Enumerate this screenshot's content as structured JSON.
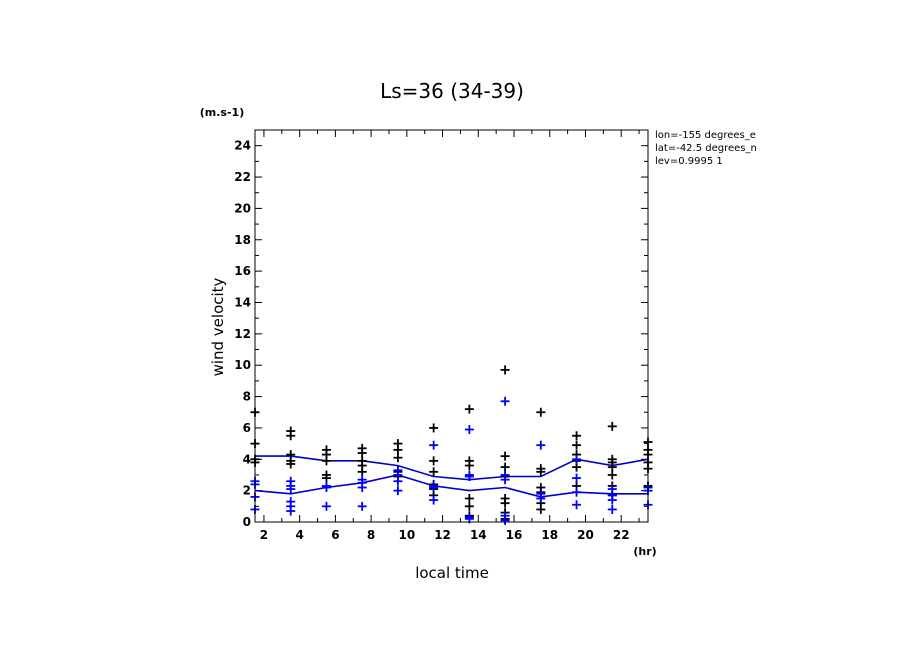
{
  "chart_data": {
    "type": "scatter",
    "title": "Ls=36 (34-39)",
    "xlabel": "local time",
    "ylabel": "wind velocity",
    "x_unit": "(hr)",
    "y_unit": "(m.s-1)",
    "xlim": [
      1.5,
      23.5
    ],
    "ylim": [
      0,
      25
    ],
    "xticks": [
      2,
      4,
      6,
      8,
      10,
      12,
      14,
      16,
      18,
      20,
      22
    ],
    "yticks": [
      0,
      2,
      4,
      6,
      8,
      10,
      12,
      14,
      16,
      18,
      20,
      22,
      24
    ],
    "grid": false,
    "annotations": [
      "lon=-155 degrees_e",
      "lat=-42.5 degrees_n",
      "lev=0.9995 1"
    ],
    "colors": {
      "series_a": "#000000",
      "series_b": "#0000ff",
      "lines": "#0000cc"
    },
    "series": [
      {
        "points": [
          [
            1.5,
            3.8
          ],
          [
            1.5,
            4.0
          ],
          [
            1.5,
            7.0
          ],
          [
            1.5,
            5.0
          ],
          [
            3.5,
            5.8
          ],
          [
            3.5,
            5.5
          ],
          [
            3.5,
            4.3
          ],
          [
            3.5,
            3.7
          ],
          [
            3.5,
            3.9
          ],
          [
            5.5,
            4.6
          ],
          [
            5.5,
            4.3
          ],
          [
            5.5,
            3.9
          ],
          [
            5.5,
            3.0
          ],
          [
            5.5,
            2.8
          ],
          [
            7.5,
            4.7
          ],
          [
            7.5,
            4.4
          ],
          [
            7.5,
            3.9
          ],
          [
            7.5,
            3.6
          ],
          [
            7.5,
            3.2
          ],
          [
            9.5,
            5.0
          ],
          [
            9.5,
            4.6
          ],
          [
            9.5,
            4.1
          ],
          [
            9.5,
            3.2
          ],
          [
            9.5,
            2.9
          ],
          [
            11.5,
            6.0
          ],
          [
            11.5,
            3.9
          ],
          [
            11.5,
            3.2
          ],
          [
            11.5,
            2.4
          ],
          [
            11.5,
            2.1
          ],
          [
            11.5,
            1.7
          ],
          [
            13.5,
            7.2
          ],
          [
            13.5,
            3.9
          ],
          [
            13.5,
            3.6
          ],
          [
            13.5,
            1.5
          ],
          [
            13.5,
            1.0
          ],
          [
            13.5,
            0.4
          ],
          [
            15.5,
            9.7
          ],
          [
            15.5,
            4.2
          ],
          [
            15.5,
            3.5
          ],
          [
            15.5,
            2.9
          ],
          [
            15.5,
            1.5
          ],
          [
            15.5,
            1.2
          ],
          [
            15.5,
            0.6
          ],
          [
            15.5,
            0.2
          ],
          [
            17.5,
            7.0
          ],
          [
            17.5,
            3.4
          ],
          [
            17.5,
            3.2
          ],
          [
            17.5,
            2.2
          ],
          [
            17.5,
            1.9
          ],
          [
            17.5,
            1.2
          ],
          [
            17.5,
            0.8
          ],
          [
            19.5,
            5.5
          ],
          [
            19.5,
            4.9
          ],
          [
            19.5,
            4.3
          ],
          [
            19.5,
            3.9
          ],
          [
            19.5,
            3.5
          ],
          [
            19.5,
            2.3
          ],
          [
            21.5,
            6.1
          ],
          [
            21.5,
            4.0
          ],
          [
            21.5,
            3.8
          ],
          [
            21.5,
            3.5
          ],
          [
            21.5,
            3.0
          ],
          [
            21.5,
            2.3
          ],
          [
            21.5,
            1.7
          ],
          [
            23.5,
            5.1
          ],
          [
            23.5,
            4.6
          ],
          [
            23.5,
            4.3
          ],
          [
            23.5,
            3.8
          ],
          [
            23.5,
            3.4
          ],
          [
            23.5,
            2.3
          ]
        ],
        "line": [
          [
            1.5,
            4.2
          ],
          [
            3.5,
            4.2
          ],
          [
            5.5,
            3.9
          ],
          [
            7.5,
            3.9
          ],
          [
            9.5,
            3.6
          ],
          [
            11.5,
            2.9
          ],
          [
            13.5,
            2.7
          ],
          [
            15.5,
            2.9
          ],
          [
            17.5,
            2.9
          ],
          [
            19.5,
            4.0
          ],
          [
            21.5,
            3.6
          ],
          [
            23.5,
            4.0
          ]
        ]
      },
      {
        "points": [
          [
            1.5,
            2.6
          ],
          [
            1.5,
            2.4
          ],
          [
            1.5,
            1.6
          ],
          [
            1.5,
            0.8
          ],
          [
            3.5,
            2.6
          ],
          [
            3.5,
            2.3
          ],
          [
            3.5,
            2.1
          ],
          [
            3.5,
            1.3
          ],
          [
            3.5,
            1.0
          ],
          [
            3.5,
            0.7
          ],
          [
            5.5,
            2.3
          ],
          [
            5.5,
            2.2
          ],
          [
            5.5,
            1.0
          ],
          [
            7.5,
            2.7
          ],
          [
            7.5,
            2.5
          ],
          [
            7.5,
            2.2
          ],
          [
            7.5,
            1.0
          ],
          [
            9.5,
            3.3
          ],
          [
            9.5,
            3.0
          ],
          [
            9.5,
            2.6
          ],
          [
            9.5,
            2.0
          ],
          [
            11.5,
            4.9
          ],
          [
            11.5,
            2.3
          ],
          [
            11.5,
            2.2
          ],
          [
            11.5,
            1.4
          ],
          [
            13.5,
            5.9
          ],
          [
            13.5,
            3.0
          ],
          [
            13.5,
            2.9
          ],
          [
            13.5,
            0.3
          ],
          [
            13.5,
            0.2
          ],
          [
            15.5,
            7.7
          ],
          [
            15.5,
            3.0
          ],
          [
            15.5,
            2.7
          ],
          [
            15.5,
            0.4
          ],
          [
            15.5,
            0.1
          ],
          [
            17.5,
            4.9
          ],
          [
            17.5,
            1.8
          ],
          [
            17.5,
            1.5
          ],
          [
            19.5,
            4.0
          ],
          [
            19.5,
            2.8
          ],
          [
            19.5,
            1.9
          ],
          [
            19.5,
            1.1
          ],
          [
            21.5,
            2.1
          ],
          [
            21.5,
            1.7
          ],
          [
            21.5,
            1.4
          ],
          [
            21.5,
            0.8
          ],
          [
            23.5,
            2.2
          ],
          [
            23.5,
            2.0
          ],
          [
            23.5,
            1.1
          ]
        ],
        "line": [
          [
            1.5,
            2.0
          ],
          [
            3.5,
            1.8
          ],
          [
            5.5,
            2.2
          ],
          [
            7.5,
            2.5
          ],
          [
            9.5,
            3.0
          ],
          [
            11.5,
            2.3
          ],
          [
            13.5,
            2.0
          ],
          [
            15.5,
            2.2
          ],
          [
            17.5,
            1.6
          ],
          [
            19.5,
            1.9
          ],
          [
            21.5,
            1.8
          ],
          [
            23.5,
            1.8
          ]
        ]
      }
    ]
  }
}
